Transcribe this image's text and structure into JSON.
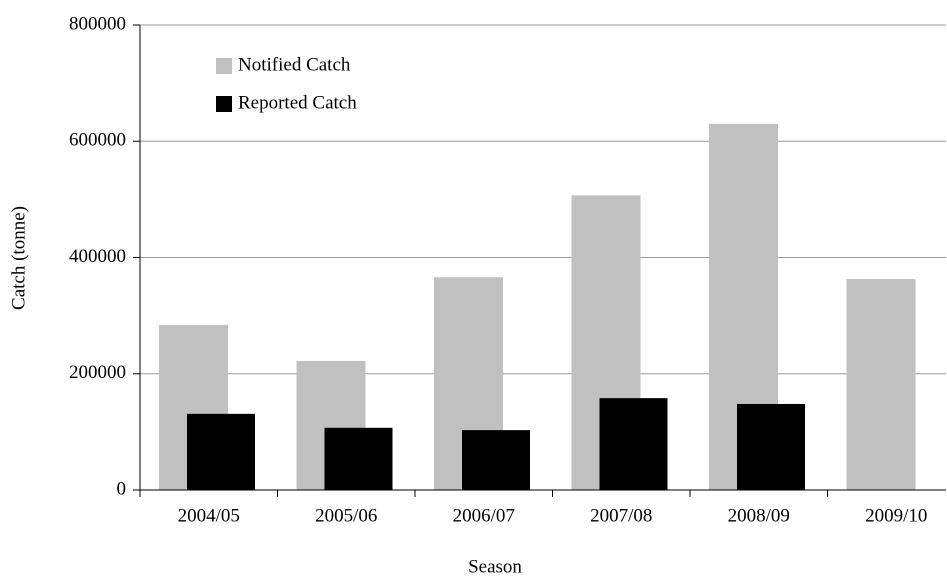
{
  "chart_data": {
    "type": "bar",
    "categories": [
      "2004/05",
      "2005/06",
      "2006/07",
      "2007/08",
      "2008/09",
      "2009/10"
    ],
    "series": [
      {
        "name": "Notified Catch",
        "color": "#c0c0c0",
        "values": [
          284000,
          222000,
          366000,
          507000,
          630000,
          363000
        ]
      },
      {
        "name": "Reported Catch",
        "color": "#000000",
        "values": [
          131000,
          107000,
          103000,
          158000,
          148000,
          null
        ]
      }
    ],
    "xlabel": "Season",
    "ylabel": "Catch (tonne)",
    "ylim": [
      0,
      800000
    ],
    "yticks": [
      0,
      200000,
      400000,
      600000,
      800000
    ],
    "grid": true,
    "legend": "upper left"
  }
}
